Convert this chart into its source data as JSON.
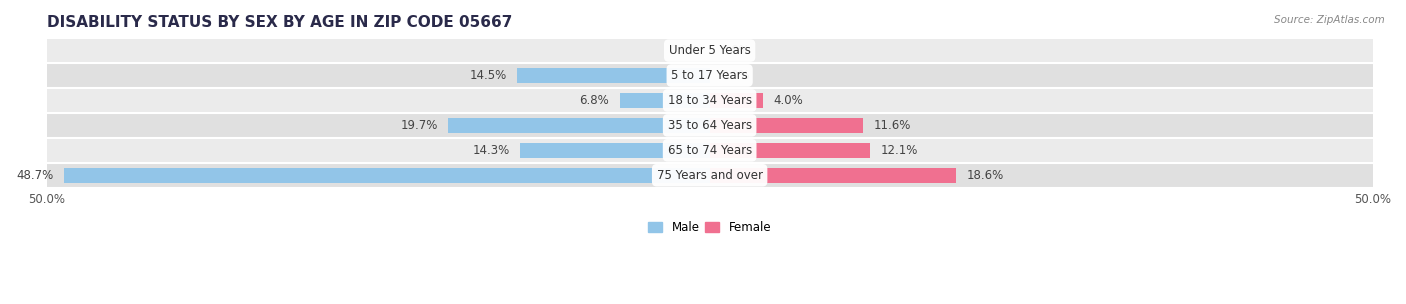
{
  "title": "DISABILITY STATUS BY SEX BY AGE IN ZIP CODE 05667",
  "source": "Source: ZipAtlas.com",
  "categories": [
    "Under 5 Years",
    "5 to 17 Years",
    "18 to 34 Years",
    "35 to 64 Years",
    "65 to 74 Years",
    "75 Years and over"
  ],
  "male_values": [
    0.0,
    14.5,
    6.8,
    19.7,
    14.3,
    48.7
  ],
  "female_values": [
    0.0,
    0.0,
    4.0,
    11.6,
    12.1,
    18.6
  ],
  "male_color": "#92C5E8",
  "female_color": "#F07090",
  "row_bg_colors": [
    "#EBEBEB",
    "#E0E0E0"
  ],
  "xlim": 50.0,
  "title_fontsize": 11,
  "label_fontsize": 8.5,
  "tick_fontsize": 8.5,
  "bar_height": 0.62,
  "figsize": [
    14.06,
    3.04
  ],
  "dpi": 100
}
